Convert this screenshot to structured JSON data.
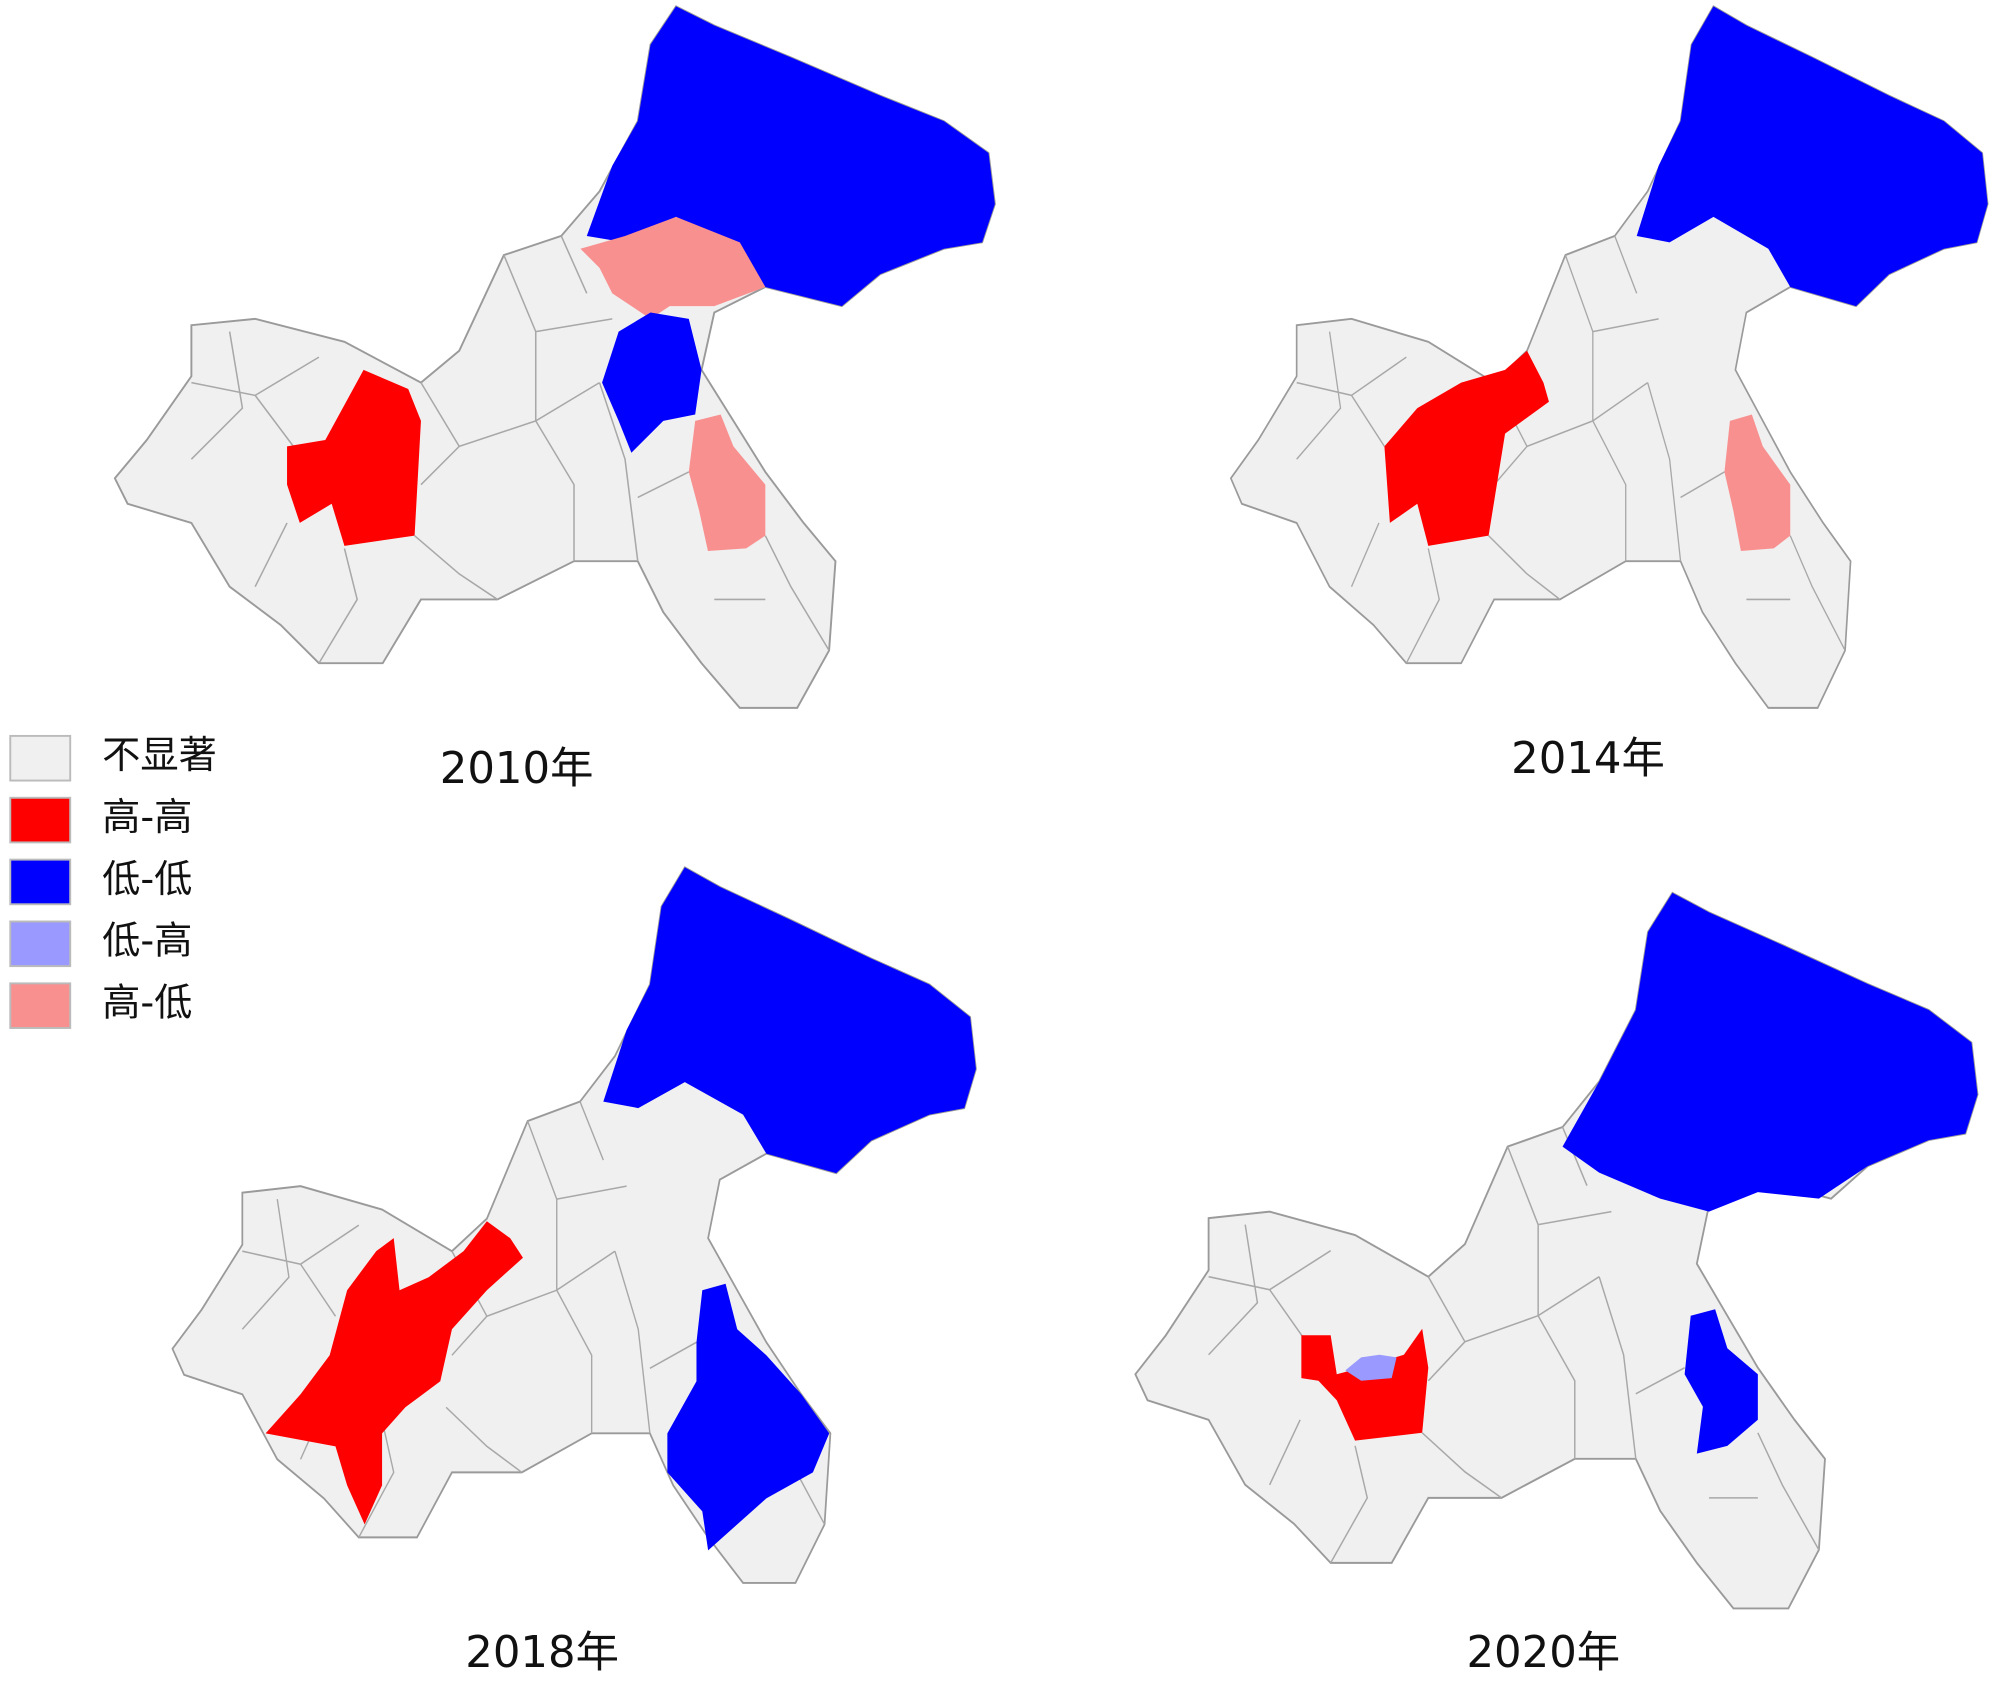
{
  "legend": [
    {
      "label": "不显著",
      "color": "#f0f0f0"
    },
    {
      "label": "高-高",
      "color": "#ff0000"
    },
    {
      "label": "低-低",
      "color": "#0000ff"
    },
    {
      "label": "低-高",
      "color": "#9999ff"
    },
    {
      "label": "高-低",
      "color": "#f99090"
    }
  ],
  "panels": [
    {
      "title": "2010年"
    },
    {
      "title": "2014年"
    },
    {
      "title": "2018年"
    },
    {
      "title": "2020年"
    }
  ]
}
